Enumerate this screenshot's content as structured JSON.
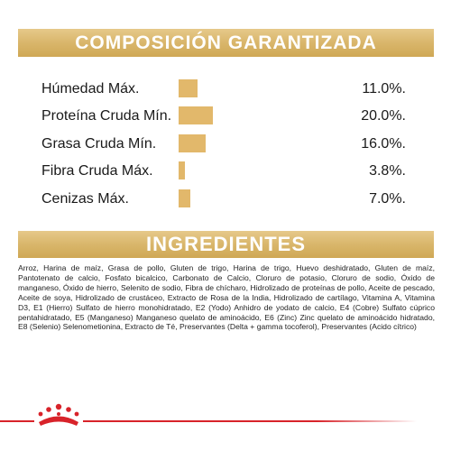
{
  "composition": {
    "title": "COMPOSICIÓN GARANTIZADA",
    "bar_color": "#e2b86b",
    "rows": [
      {
        "label": "Húmedad Máx.",
        "percent": "11.0%.",
        "value": 11.0
      },
      {
        "label": "Proteína Cruda Mín.",
        "percent": "20.0%.",
        "value": 20.0
      },
      {
        "label": "Grasa Cruda Mín.",
        "percent": "16.0%.",
        "value": 16.0
      },
      {
        "label": "Fibra Cruda Máx.",
        "percent": "3.8%.",
        "value": 3.8
      },
      {
        "label": "Cenizas Máx.",
        "percent": "7.0%.",
        "value": 7.0
      }
    ]
  },
  "ingredients": {
    "title": "INGREDIENTES",
    "text": "Arroz, Harina de maíz, Grasa de pollo, Gluten de trigo, Harina de trigo, Huevo deshidratado, Gluten de maíz, Pantotenato de calcio, Fosfato bicalcico, Carbonato de Calcio, Cloruro de potasio, Cloruro de sodio, Óxido de manganeso, Óxido de hierro, Selenito de sodio, Fibra de chícharo, Hidrolizado de proteínas de pollo, Aceite de pescado, Aceite de soya, Hidrolizado de crustáceo, Extracto de Rosa de la India, Hidrolizado de cartílago, Vitamina A, Vitamina D3, E1 (Hierro) Sulfato de hierro monohidratado, E2 (Yodo) Anhidro de yodato de calcio, E4 (Cobre) Sulfato cúprico pentahidratado, E5 (Manganeso) Manganeso quelato de aminoácido, E6 (Zinc) Zinc quelato de aminoácido hidratado, E8 (Selenio) Selenometionina, Extracto de Té, Preservantes (Delta + gamma tocoferol), Preservantes (Acido cítrico)"
  },
  "footer": {
    "accent_color": "#d8232a",
    "logo_icon": "royal-canin-crown-icon"
  }
}
